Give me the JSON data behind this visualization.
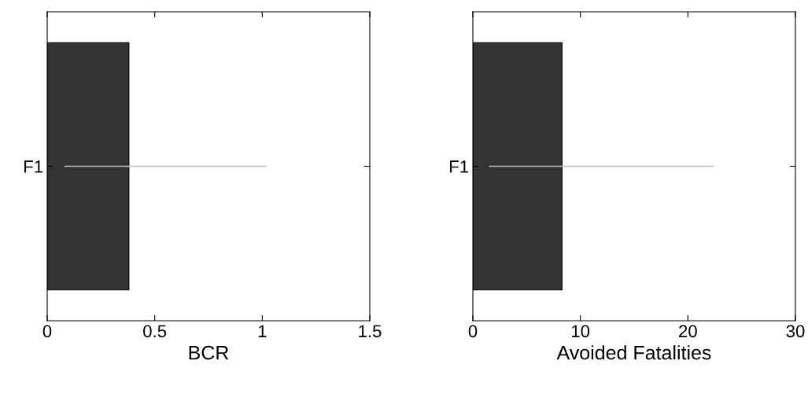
{
  "chart_data": [
    {
      "type": "bar",
      "orientation": "horizontal",
      "xlabel": "BCR",
      "categories": [
        "F1"
      ],
      "values": [
        0.38
      ],
      "color": "#333333",
      "errors": [
        [
          0.08,
          1.02
        ]
      ],
      "xlim": [
        0,
        1.5
      ],
      "xticks": [
        0,
        0.5,
        1,
        1.5
      ],
      "grid": false
    },
    {
      "type": "bar",
      "orientation": "horizontal",
      "xlabel": "Avoided Fatalities",
      "categories": [
        "F1"
      ],
      "values": [
        8.3
      ],
      "color": "#333333",
      "errors": [
        [
          1.5,
          22.4
        ]
      ],
      "xlim": [
        0,
        30
      ],
      "xticks": [
        0,
        10,
        20,
        30
      ],
      "grid": false
    }
  ]
}
